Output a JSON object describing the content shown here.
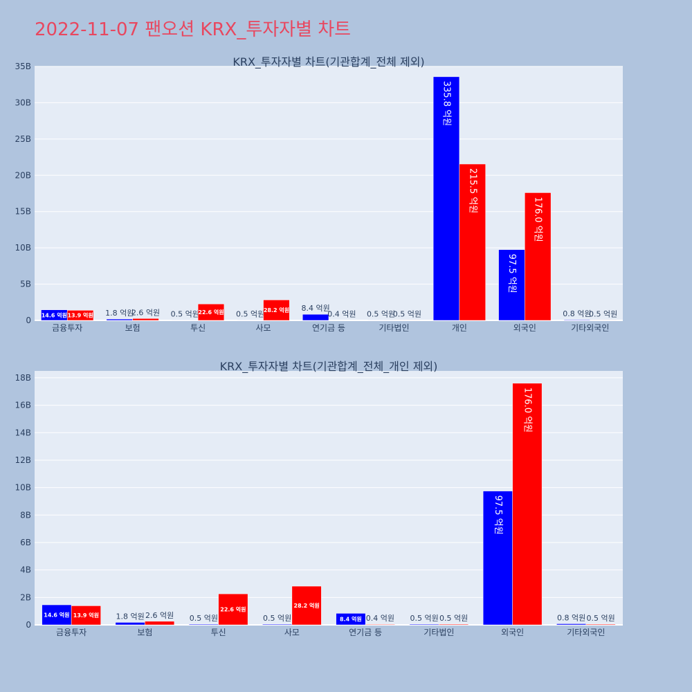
{
  "page": {
    "title": "2022-11-07 팬오션 KRX_투자자별 차트",
    "background": "#b0c4de",
    "plot_background": "#e5ecf6",
    "buy_color": "#0000ff",
    "sell_color": "#ff0000"
  },
  "chart_data": [
    {
      "type": "bar",
      "title": "KRX_투자자별 차트(기관합계_전체 제외)",
      "categories": [
        "금융투자",
        "보험",
        "투신",
        "사모",
        "연기금 등",
        "기타법인",
        "개인",
        "외국인",
        "기타외국인"
      ],
      "series": [
        {
          "color": "#0000ff",
          "values": [
            1460000000,
            180000000,
            50000000,
            50000000,
            840000000,
            50000000,
            33580000000,
            9750000000,
            80000000
          ],
          "labels": [
            "14.6 억원",
            "1.8 억원",
            "0.5 억원",
            "0.5 억원",
            "8.4 억원",
            "0.5 억원",
            "335.8 억원",
            "97.5 억원",
            "0.8 억원"
          ]
        },
        {
          "color": "#ff0000",
          "values": [
            1390000000,
            260000000,
            2260000000,
            2820000000,
            40000000,
            50000000,
            21550000000,
            17600000000,
            50000000
          ],
          "labels": [
            "13.9 억원",
            "2.6 억원",
            "22.6 억원",
            "28.2 억원",
            "0.4 억원",
            "0.5 억원",
            "215.5 억원",
            "176.0 억원",
            "0.5 억원"
          ]
        }
      ],
      "ylim": [
        0,
        35000000000
      ],
      "yticks": [
        0,
        5000000000,
        10000000000,
        15000000000,
        20000000000,
        25000000000,
        30000000000,
        35000000000
      ],
      "ytick_labels": [
        "0",
        "5B",
        "10B",
        "15B",
        "20B",
        "25B",
        "30B",
        "35B"
      ],
      "grid": true
    },
    {
      "type": "bar",
      "title": "KRX_투자자별 차트(기관합계_전체_개인 제외)",
      "categories": [
        "금융투자",
        "보험",
        "투신",
        "사모",
        "연기금 등",
        "기타법인",
        "외국인",
        "기타외국인"
      ],
      "series": [
        {
          "color": "#0000ff",
          "values": [
            1460000000,
            180000000,
            50000000,
            50000000,
            840000000,
            50000000,
            9750000000,
            80000000
          ],
          "labels": [
            "14.6 억원",
            "1.8 억원",
            "0.5 억원",
            "0.5 억원",
            "8.4 억원",
            "0.5 억원",
            "97.5 억원",
            "0.8 억원"
          ]
        },
        {
          "color": "#ff0000",
          "values": [
            1390000000,
            260000000,
            2260000000,
            2820000000,
            40000000,
            50000000,
            17600000000,
            50000000
          ],
          "labels": [
            "13.9 억원",
            "2.6 억원",
            "22.6 억원",
            "28.2 억원",
            "0.4 억원",
            "0.5 억원",
            "176.0 억원",
            "0.5 억원"
          ]
        }
      ],
      "ylim": [
        0,
        18500000000
      ],
      "yticks": [
        0,
        2000000000,
        4000000000,
        6000000000,
        8000000000,
        10000000000,
        12000000000,
        14000000000,
        16000000000,
        18000000000
      ],
      "ytick_labels": [
        "0",
        "2B",
        "4B",
        "6B",
        "8B",
        "10B",
        "12B",
        "14B",
        "16B",
        "18B"
      ],
      "grid": true
    }
  ]
}
